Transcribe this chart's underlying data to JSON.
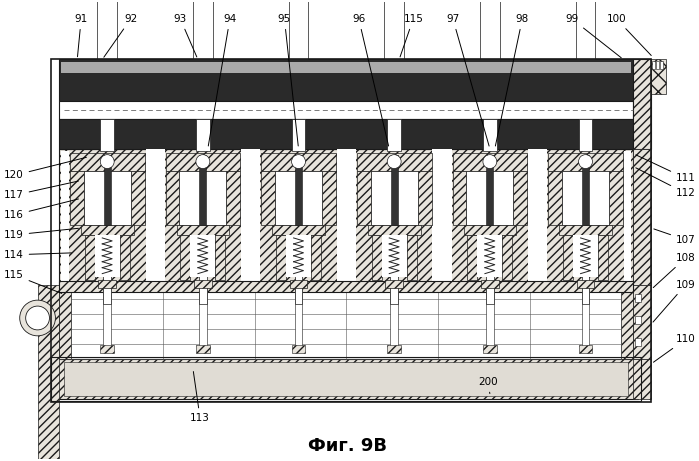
{
  "title": "Фиг. 9В",
  "title_fontsize": 13,
  "bg_color": "#ffffff",
  "line_color": "#1a1a1a",
  "fill_light": "#e8e4dc",
  "fill_hatch": "#d0ccc0",
  "dark_fill": "#2a2a2a",
  "white_fill": "#ffffff",
  "gray_fill": "#888880",
  "n_cylinders": 6,
  "ann_fs": 7.5,
  "top_labels": [
    "91",
    "92",
    "93",
    "94",
    "95",
    "96",
    "115",
    "97",
    "98",
    "99",
    "100"
  ],
  "left_labels": [
    "120",
    "117",
    "116",
    "119",
    "114",
    "115"
  ],
  "right_labels": [
    "111",
    "112",
    "107",
    "108",
    "109",
    "110"
  ],
  "bottom_labels": [
    "113",
    "200"
  ]
}
